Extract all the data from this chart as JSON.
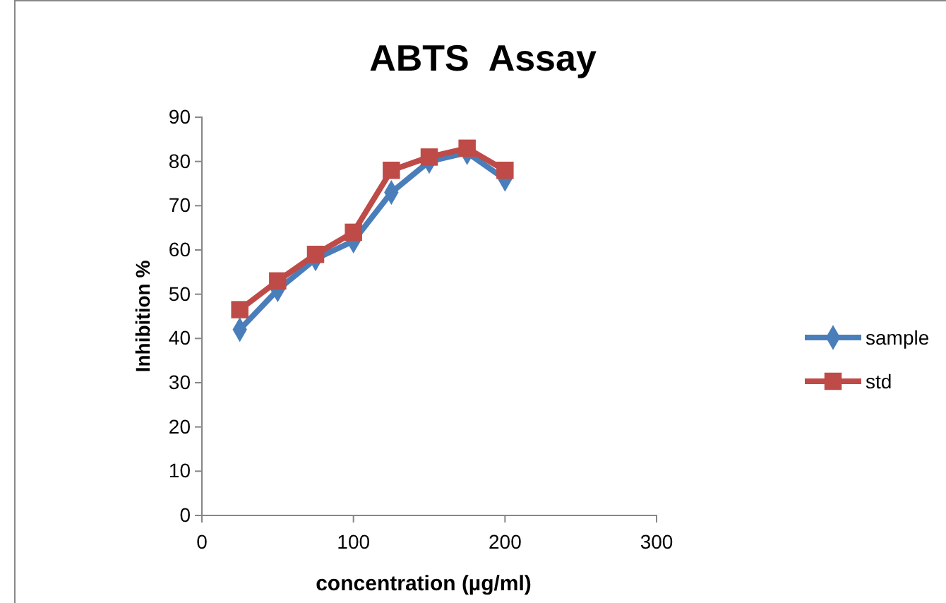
{
  "chart_data": {
    "type": "line",
    "title": "ABTS  Assay",
    "xlabel": "concentration (µg/ml)",
    "ylabel": "Inhibition %",
    "x": [
      25,
      50,
      75,
      100,
      125,
      150,
      175,
      200
    ],
    "series": [
      {
        "name": "sample",
        "color": "#4a7ebb",
        "marker": "diamond",
        "values": [
          42,
          51,
          58,
          62,
          73,
          80,
          82,
          76
        ]
      },
      {
        "name": "std",
        "color": "#be4b48",
        "marker": "square",
        "values": [
          46.5,
          53,
          59,
          64,
          78,
          81,
          83,
          78
        ]
      }
    ],
    "xlim": [
      0,
      300
    ],
    "xticks": [
      0,
      100,
      200,
      300
    ],
    "ylim": [
      0,
      90
    ],
    "yticks": [
      0,
      10,
      20,
      30,
      40,
      50,
      60,
      70,
      80,
      90
    ],
    "grid": false,
    "legend": "right",
    "line_style": "solid"
  }
}
